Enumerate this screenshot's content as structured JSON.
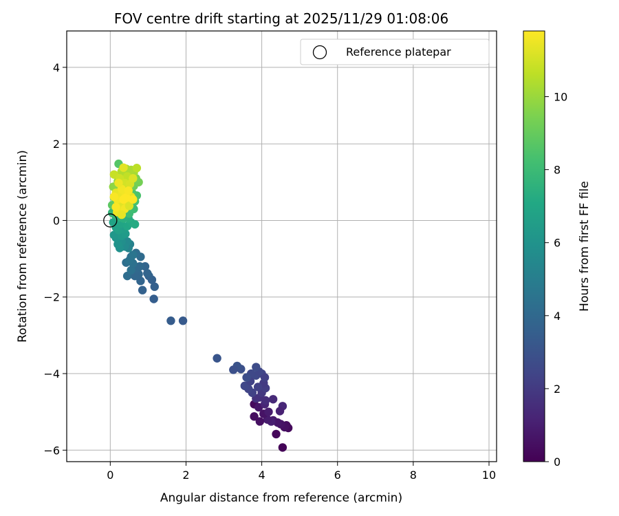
{
  "chart_data": {
    "type": "scatter",
    "title": "FOV centre drift starting at 2025/11/29 01:08:06",
    "xlabel": "Angular distance from reference (arcmin)",
    "ylabel": "Rotation from reference (arcmin)",
    "xlim": [
      -1.15,
      10.2
    ],
    "ylim": [
      -6.3,
      4.95
    ],
    "xticks": [
      0,
      2,
      4,
      6,
      8,
      10
    ],
    "yticks": [
      -6,
      -4,
      -2,
      0,
      2,
      4
    ],
    "grid": true,
    "legend": {
      "position": "top-right",
      "entries": [
        "Reference platepar"
      ]
    },
    "reference_point": {
      "x": 0,
      "y": 0,
      "label": "Reference platepar"
    },
    "colorbar": {
      "label": "Hours from first FF file",
      "min": 0,
      "max": 11.8,
      "ticks": [
        0,
        2,
        4,
        6,
        8,
        10
      ],
      "colormap": "viridis"
    },
    "series": [
      {
        "x_columns": [
          "x",
          "y",
          "hours"
        ],
        "points": [
          [
            4.55,
            -5.93,
            0.1
          ],
          [
            4.7,
            -5.42,
            0.3
          ],
          [
            4.65,
            -5.35,
            0.4
          ],
          [
            4.6,
            -5.4,
            0.5
          ],
          [
            4.5,
            -5.32,
            0.6
          ],
          [
            4.38,
            -5.58,
            0.2
          ],
          [
            4.3,
            -5.22,
            0.8
          ],
          [
            4.42,
            -5.28,
            0.7
          ],
          [
            4.25,
            -5.25,
            1.0
          ],
          [
            4.15,
            -5.2,
            0.9
          ],
          [
            4.05,
            -5.05,
            0.6
          ],
          [
            3.95,
            -5.25,
            0.5
          ],
          [
            3.8,
            -5.12,
            0.4
          ],
          [
            3.8,
            -4.8,
            0.3
          ],
          [
            3.92,
            -4.88,
            0.7
          ],
          [
            4.08,
            -4.8,
            1.2
          ],
          [
            4.18,
            -5.0,
            0.9
          ],
          [
            4.55,
            -4.85,
            1.3
          ],
          [
            4.48,
            -4.98,
            1.1
          ],
          [
            4.3,
            -4.67,
            1.4
          ],
          [
            4.1,
            -4.7,
            1.5
          ],
          [
            3.95,
            -4.62,
            1.6
          ],
          [
            3.85,
            -4.65,
            1.7
          ],
          [
            4.0,
            -4.5,
            1.9
          ],
          [
            4.1,
            -4.38,
            2.1
          ],
          [
            4.05,
            -4.25,
            2.0
          ],
          [
            3.9,
            -4.35,
            2.2
          ],
          [
            3.75,
            -4.5,
            2.3
          ],
          [
            3.65,
            -4.4,
            2.4
          ],
          [
            3.55,
            -4.32,
            2.5
          ],
          [
            3.7,
            -4.2,
            2.3
          ],
          [
            3.85,
            -4.05,
            2.6
          ],
          [
            4.0,
            -4.0,
            2.4
          ],
          [
            4.08,
            -4.1,
            2.2
          ],
          [
            3.93,
            -3.95,
            2.5
          ],
          [
            3.85,
            -3.83,
            2.7
          ],
          [
            3.72,
            -4.0,
            2.6
          ],
          [
            3.6,
            -4.1,
            2.8
          ],
          [
            3.45,
            -3.88,
            2.9
          ],
          [
            3.35,
            -3.8,
            3.0
          ],
          [
            3.25,
            -3.9,
            2.9
          ],
          [
            2.82,
            -3.6,
            3.1
          ],
          [
            1.92,
            -2.62,
            3.3
          ],
          [
            1.6,
            -2.62,
            3.4
          ],
          [
            1.15,
            -2.05,
            3.5
          ],
          [
            1.17,
            -1.73,
            3.6
          ],
          [
            1.1,
            -1.55,
            3.6
          ],
          [
            1.02,
            -1.45,
            3.7
          ],
          [
            0.98,
            -1.38,
            3.8
          ],
          [
            0.92,
            -1.2,
            3.8
          ],
          [
            0.85,
            -1.82,
            3.7
          ],
          [
            0.8,
            -1.58,
            3.8
          ],
          [
            0.75,
            -1.4,
            3.9
          ],
          [
            0.65,
            -1.45,
            3.9
          ],
          [
            0.7,
            -1.25,
            4.0
          ],
          [
            0.78,
            -1.2,
            4.0
          ],
          [
            0.8,
            -0.95,
            4.1
          ],
          [
            0.68,
            -0.85,
            4.2
          ],
          [
            0.55,
            -0.95,
            4.3
          ],
          [
            0.42,
            -1.1,
            4.3
          ],
          [
            0.45,
            -1.45,
            4.2
          ],
          [
            0.55,
            -1.3,
            4.4
          ],
          [
            0.6,
            -1.12,
            4.4
          ],
          [
            0.5,
            -1.05,
            4.5
          ],
          [
            0.6,
            -0.9,
            4.6
          ],
          [
            0.52,
            -0.62,
            5.1
          ],
          [
            0.48,
            -0.72,
            5.3
          ],
          [
            0.45,
            -0.55,
            5.5
          ],
          [
            0.38,
            -0.68,
            5.6
          ],
          [
            0.3,
            -0.55,
            5.8
          ],
          [
            0.25,
            -0.72,
            5.9
          ],
          [
            0.2,
            -0.62,
            6.0
          ],
          [
            0.15,
            -0.45,
            6.1
          ],
          [
            0.1,
            -0.38,
            6.2
          ],
          [
            0.3,
            -0.4,
            6.3
          ],
          [
            0.4,
            -0.35,
            6.4
          ],
          [
            0.35,
            -0.22,
            6.5
          ],
          [
            0.22,
            -0.25,
            6.6
          ],
          [
            0.15,
            -0.18,
            6.7
          ],
          [
            0.08,
            -0.05,
            6.8
          ],
          [
            0.28,
            -0.08,
            6.9
          ],
          [
            0.45,
            -0.15,
            7.0
          ],
          [
            0.55,
            -0.05,
            7.1
          ],
          [
            0.65,
            -0.1,
            7.2
          ],
          [
            0.48,
            0.05,
            7.3
          ],
          [
            0.35,
            0.05,
            7.4
          ],
          [
            0.22,
            0.08,
            7.5
          ],
          [
            0.12,
            0.15,
            7.6
          ],
          [
            0.05,
            0.2,
            7.7
          ],
          [
            0.18,
            0.25,
            7.8
          ],
          [
            0.32,
            0.22,
            7.9
          ],
          [
            0.5,
            0.18,
            8.0
          ],
          [
            0.62,
            0.3,
            8.1
          ],
          [
            0.55,
            0.45,
            8.2
          ],
          [
            0.4,
            0.4,
            8.3
          ],
          [
            0.65,
            0.5,
            8.3
          ],
          [
            0.7,
            0.65,
            8.4
          ],
          [
            0.58,
            0.72,
            8.5
          ],
          [
            0.42,
            0.6,
            8.6
          ],
          [
            0.28,
            0.52,
            8.6
          ],
          [
            0.15,
            0.45,
            8.7
          ],
          [
            0.05,
            0.4,
            8.8
          ],
          [
            0.1,
            0.6,
            8.9
          ],
          [
            0.22,
            0.7,
            9.0
          ],
          [
            0.35,
            0.78,
            9.0
          ],
          [
            0.5,
            0.85,
            9.1
          ],
          [
            0.62,
            0.9,
            9.2
          ],
          [
            0.75,
            1.0,
            9.3
          ],
          [
            0.68,
            1.1,
            9.4
          ],
          [
            0.55,
            1.05,
            9.5
          ],
          [
            0.42,
            0.95,
            9.5
          ],
          [
            0.3,
            0.92,
            9.6
          ],
          [
            0.18,
            0.85,
            9.7
          ],
          [
            0.08,
            0.88,
            9.8
          ],
          [
            0.2,
            1.02,
            9.9
          ],
          [
            0.32,
            1.12,
            10.0
          ],
          [
            0.48,
            1.22,
            10.1
          ],
          [
            0.62,
            1.25,
            10.2
          ],
          [
            0.55,
            1.32,
            10.3
          ],
          [
            0.42,
            1.35,
            10.3
          ],
          [
            0.3,
            1.28,
            10.4
          ],
          [
            0.22,
            1.48,
            8.6
          ],
          [
            0.7,
            1.37,
            10.6
          ],
          [
            0.45,
            1.15,
            10.7
          ],
          [
            0.1,
            1.2,
            10.8
          ],
          [
            0.25,
            1.1,
            10.9
          ],
          [
            0.38,
            0.98,
            11.0
          ],
          [
            0.52,
            0.95,
            11.1
          ],
          [
            0.6,
            1.1,
            11.2
          ],
          [
            0.35,
            1.38,
            11.3
          ],
          [
            0.15,
            0.72,
            11.4
          ],
          [
            0.28,
            0.65,
            11.5
          ],
          [
            0.4,
            0.72,
            11.6
          ],
          [
            0.55,
            0.62,
            11.4
          ],
          [
            0.45,
            0.48,
            11.7
          ],
          [
            0.32,
            0.45,
            11.5
          ],
          [
            0.2,
            0.52,
            11.6
          ],
          [
            0.1,
            0.62,
            11.7
          ],
          [
            0.25,
            0.35,
            11.3
          ],
          [
            0.38,
            0.3,
            11.6
          ],
          [
            0.5,
            0.38,
            11.2
          ],
          [
            0.6,
            0.55,
            11.8
          ],
          [
            0.18,
            0.22,
            11.5
          ],
          [
            0.3,
            0.15,
            11.4
          ],
          [
            0.42,
            0.6,
            11.8
          ],
          [
            0.3,
            0.82,
            11.6
          ],
          [
            0.48,
            0.78,
            11.7
          ],
          [
            0.22,
            0.98,
            11.5
          ],
          [
            0.35,
            0.55,
            11.8
          ],
          [
            0.15,
            0.35,
            11.7
          ]
        ]
      }
    ]
  }
}
